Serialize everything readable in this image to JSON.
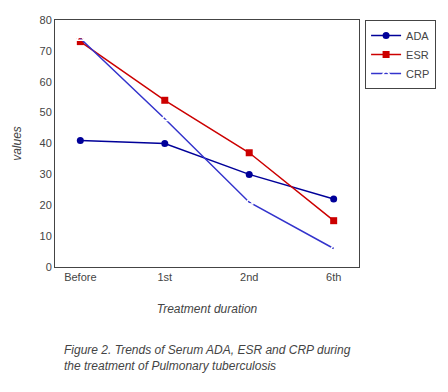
{
  "chart_data": {
    "type": "line",
    "xlabel": "Treatment duration",
    "ylabel": "values",
    "categories": [
      "Before",
      "1st",
      "2nd",
      "6th"
    ],
    "series": [
      {
        "name": "ADA",
        "color": "#000099",
        "marker": "circle",
        "values": [
          41,
          40,
          30,
          22
        ]
      },
      {
        "name": "ESR",
        "color": "#CC0000",
        "marker": "square",
        "values": [
          73,
          54,
          37,
          15
        ]
      },
      {
        "name": "CRP",
        "color": "#3333CC",
        "marker": "triangle-up-open",
        "values": [
          74,
          48,
          21,
          6
        ]
      }
    ],
    "ylim": [
      0,
      80
    ],
    "yticks": [
      0,
      10,
      20,
      30,
      40,
      50,
      60,
      70,
      80
    ],
    "grid": false,
    "legend": "right",
    "annotations": [
      "Figure 2. Trends of Serum ADA, ESR and CRP during\nthe treatment of Pulmonary tuberculosis"
    ]
  }
}
